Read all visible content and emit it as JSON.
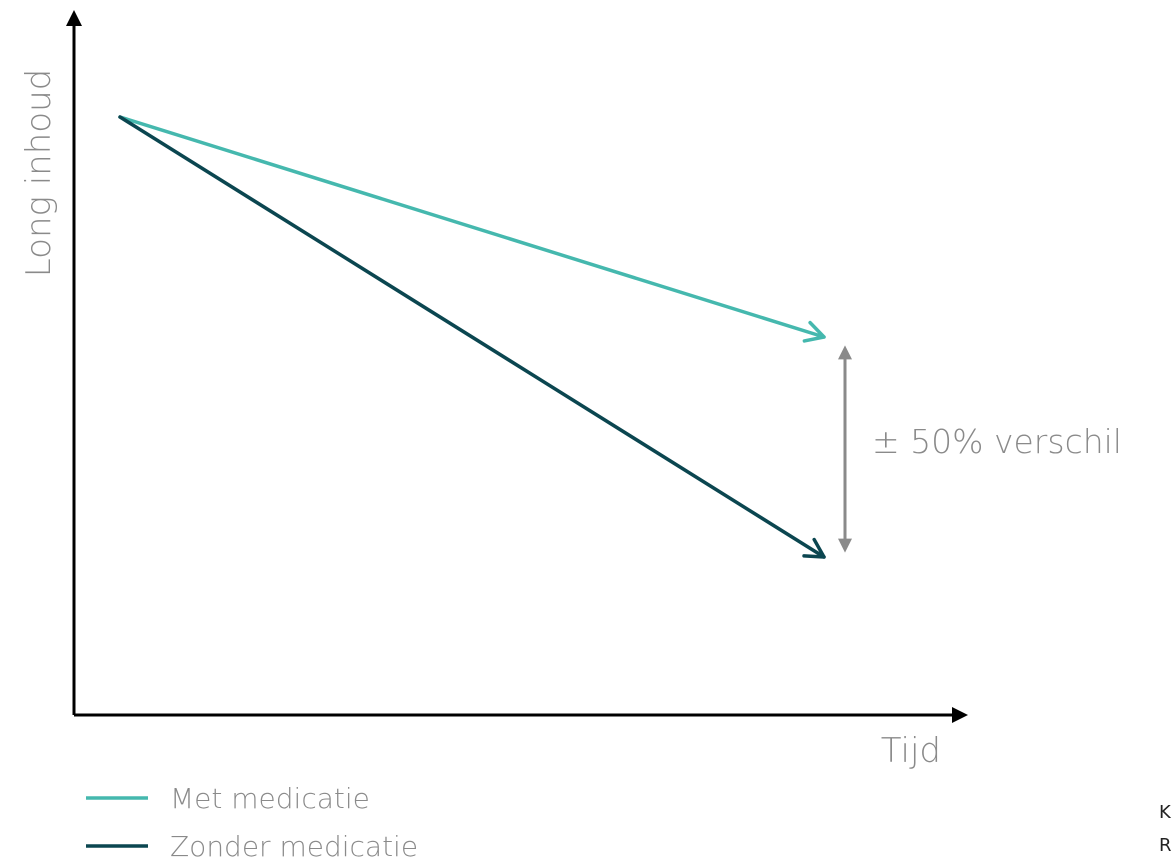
{
  "chart_data": {
    "type": "line",
    "title": "",
    "xlabel": "Tijd",
    "ylabel": "Long inhoud",
    "grid": false,
    "legend_position": "bottom-left",
    "series": [
      {
        "name": "Met medicatie",
        "color": "#45b8ae",
        "values": [
          100,
          75
        ]
      },
      {
        "name": "Zonder medicatie",
        "color": "#0b4650",
        "values": [
          100,
          50
        ]
      }
    ],
    "annotation": {
      "text": "± 50% verschil",
      "color": "#8a8a8a"
    },
    "corner_letters": [
      "K",
      "R"
    ]
  }
}
